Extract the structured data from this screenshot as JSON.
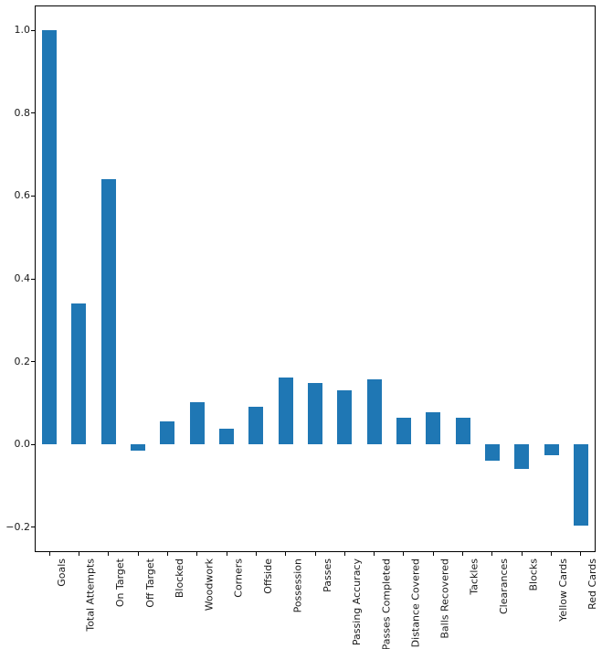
{
  "chart_data": {
    "type": "bar",
    "title": "",
    "xlabel": "",
    "ylabel": "",
    "bar_color": "#1f77b4",
    "axis_color": "#000000",
    "grid": false,
    "legend_position": "none",
    "categories": [
      "Goals",
      "Total Attempts",
      "On Target",
      "Off Target",
      "Blocked",
      "Woodwork",
      "Corners",
      "Offside",
      "Possession",
      "Passes",
      "Passing Accuracy",
      "Passes Completed",
      "Distance Covered",
      "Balls Recovered",
      "Tackles",
      "Clearances",
      "Blocks",
      "Yellow Cards",
      "Red Cards"
    ],
    "values": [
      1.0,
      0.34,
      0.64,
      -0.015,
      0.055,
      0.103,
      0.037,
      0.092,
      0.161,
      0.149,
      0.131,
      0.157,
      0.065,
      0.077,
      0.064,
      -0.039,
      -0.059,
      -0.027,
      -0.197
    ],
    "ylim": [
      -0.26,
      1.06
    ],
    "yticks": [
      1.0,
      0.8,
      0.6,
      0.4,
      0.2,
      0.0,
      -0.2
    ],
    "ytick_labels": [
      "1.0",
      "0.8",
      "0.6",
      "0.4",
      "0.2",
      "0.0",
      "−0.2"
    ]
  }
}
